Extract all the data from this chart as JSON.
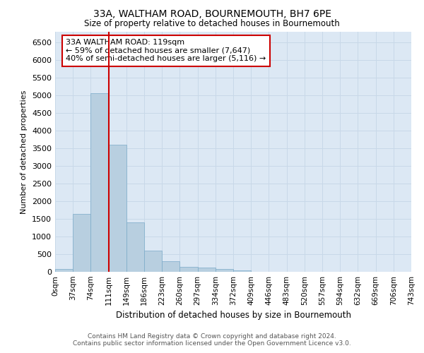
{
  "title": "33A, WALTHAM ROAD, BOURNEMOUTH, BH7 6PE",
  "subtitle": "Size of property relative to detached houses in Bournemouth",
  "xlabel": "Distribution of detached houses by size in Bournemouth",
  "ylabel": "Number of detached properties",
  "footer_line1": "Contains HM Land Registry data © Crown copyright and database right 2024.",
  "footer_line2": "Contains public sector information licensed under the Open Government Licence v3.0.",
  "bar_values": [
    75,
    1650,
    5070,
    3600,
    1400,
    610,
    295,
    145,
    120,
    80,
    45,
    10,
    0,
    0,
    0,
    0,
    0,
    0,
    0,
    0
  ],
  "x_labels": [
    "0sqm",
    "37sqm",
    "74sqm",
    "111sqm",
    "149sqm",
    "186sqm",
    "223sqm",
    "260sqm",
    "297sqm",
    "334sqm",
    "372sqm",
    "409sqm",
    "446sqm",
    "483sqm",
    "520sqm",
    "557sqm",
    "594sqm",
    "632sqm",
    "669sqm",
    "706sqm",
    "743sqm"
  ],
  "bar_color": "#b8cfe0",
  "bar_edge_color": "#7aaac8",
  "grid_color": "#c8d8e8",
  "background_color": "#dce8f4",
  "vline_color": "#cc0000",
  "vline_position": 3.0,
  "annotation_text_line1": "33A WALTHAM ROAD: 119sqm",
  "annotation_text_line2": "← 59% of detached houses are smaller (7,647)",
  "annotation_text_line3": "40% of semi-detached houses are larger (5,116) →",
  "annotation_box_color": "#cc0000",
  "ylim": [
    0,
    6800
  ],
  "yticks": [
    0,
    500,
    1000,
    1500,
    2000,
    2500,
    3000,
    3500,
    4000,
    4500,
    5000,
    5500,
    6000,
    6500
  ]
}
